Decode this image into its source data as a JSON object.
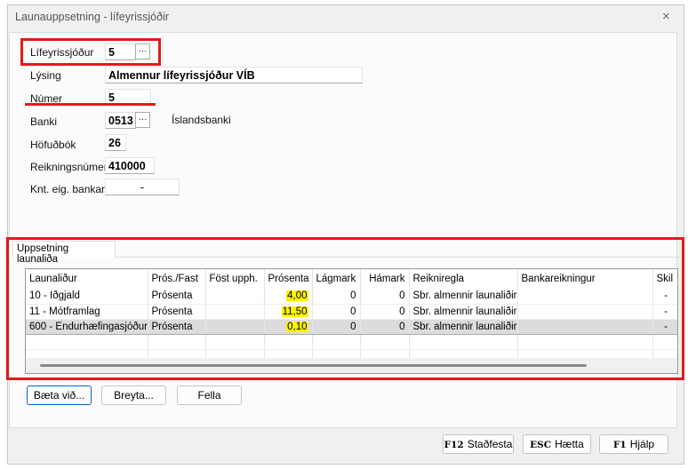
{
  "window": {
    "title": "Launauppsetning - lífeyrissjóðir",
    "close_icon": "×"
  },
  "form": {
    "lifeyrissjodur": {
      "label": "Lífeyrissjóður",
      "value": "5",
      "lookup": "···"
    },
    "lysing": {
      "label": "Lýsing",
      "value": "Almennur lífeyrissjóður VÍB"
    },
    "numer": {
      "label": "Númer",
      "value": "5"
    },
    "banki": {
      "label": "Banki",
      "value": "0513",
      "lookup": "···",
      "name": "Íslandsbanki"
    },
    "hofudbok": {
      "label": "Höfuðbók",
      "value": "26"
    },
    "reikningsnumer": {
      "label": "Reikningsnúmer",
      "value": "410000"
    },
    "knt": {
      "label": "Knt. eig. bankar.",
      "value": "-"
    }
  },
  "tab": {
    "label": "Uppsetning launaliða"
  },
  "table": {
    "columns": [
      "Launaliður",
      "Prós./Fast",
      "Föst upph.",
      "Prósenta",
      "Lágmark",
      "Hámark",
      "Reikniregla",
      "Bankareikningur",
      "Skil"
    ],
    "rows": [
      [
        "10 - Iðgjald",
        "Prósenta",
        "",
        "4,00",
        "0",
        "0",
        "Sbr. almennir launaliðir",
        "",
        "-"
      ],
      [
        "11 - Mótframlag",
        "Prósenta",
        "",
        "11,50",
        "0",
        "0",
        "Sbr. almennir launaliðir",
        "",
        "-"
      ],
      [
        "600 - Endurhæfingasjóður",
        "Prósenta",
        "",
        "0,10",
        "0",
        "0",
        "Sbr. almennir launaliðir",
        "",
        "-"
      ]
    ],
    "selected_row": 2,
    "highlight_color": "#fff200"
  },
  "buttons": {
    "add": "Bæta við...",
    "edit": "Breyta...",
    "delete": "Fella"
  },
  "footer": {
    "confirm": {
      "key": "F12",
      "label": "Staðfesta"
    },
    "cancel": {
      "key": "ESC",
      "label": "Hætta"
    },
    "help": {
      "key": "F1",
      "label": "Hjálp"
    }
  },
  "annotation_color": "#e01b1b"
}
